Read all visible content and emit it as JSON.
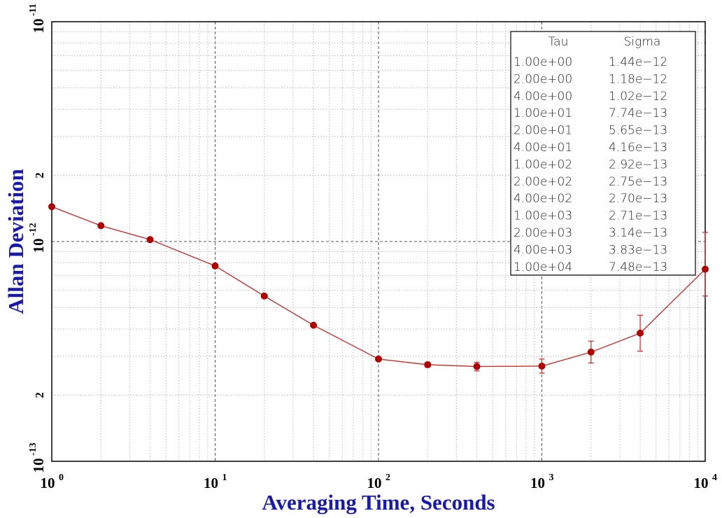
{
  "chart_data": {
    "type": "line",
    "xlabel": "Averaging Time, Seconds",
    "ylabel": "Allan Deviation",
    "xscale": "log",
    "yscale": "log",
    "xlim": [
      1,
      10000
    ],
    "ylim": [
      1e-13,
      1e-11
    ],
    "grid": true,
    "x_ticks": [
      {
        "mantissa": "10",
        "exp": "0"
      },
      {
        "mantissa": "10",
        "exp": "1"
      },
      {
        "mantissa": "10",
        "exp": "2"
      },
      {
        "mantissa": "10",
        "exp": "3"
      },
      {
        "mantissa": "10",
        "exp": "4"
      }
    ],
    "y_ticks": [
      {
        "mantissa": "10",
        "exp": "-13"
      },
      {
        "mantissa": "10",
        "exp": "-12"
      },
      {
        "mantissa": "10",
        "exp": "-11"
      }
    ],
    "y_minor_labels": [
      "2",
      "2"
    ],
    "series": [
      {
        "color": "#c83232",
        "marker_color": "#b00000",
        "x": [
          1,
          2,
          4,
          10,
          20,
          40,
          100,
          200,
          400,
          1000,
          2000,
          4000,
          10000
        ],
        "y": [
          1.44e-12,
          1.18e-12,
          1.02e-12,
          7.74e-13,
          5.65e-13,
          4.16e-13,
          2.92e-13,
          2.75e-13,
          2.7e-13,
          2.71e-13,
          3.14e-13,
          3.83e-13,
          7.48e-13
        ],
        "err_low": [
          null,
          null,
          null,
          null,
          null,
          null,
          2.87e-13,
          2.68e-13,
          2.58e-13,
          2.52e-13,
          2.8e-13,
          3.17e-13,
          5.65e-13
        ],
        "err_high": [
          null,
          null,
          null,
          null,
          null,
          null,
          2.97e-13,
          2.82e-13,
          2.82e-13,
          2.92e-13,
          3.52e-13,
          4.62e-13,
          1.1e-12
        ]
      }
    ],
    "table": {
      "headers": [
        "Tau",
        "Sigma"
      ],
      "rows": [
        [
          "1.00e+00",
          "1.44e−12"
        ],
        [
          "2.00e+00",
          "1.18e−12"
        ],
        [
          "4.00e+00",
          "1.02e−12"
        ],
        [
          "1.00e+01",
          "7.74e−13"
        ],
        [
          "2.00e+01",
          "5.65e−13"
        ],
        [
          "4.00e+01",
          "4.16e−13"
        ],
        [
          "1.00e+02",
          "2.92e−13"
        ],
        [
          "2.00e+02",
          "2.75e−13"
        ],
        [
          "4.00e+02",
          "2.70e−13"
        ],
        [
          "1.00e+03",
          "2.71e−13"
        ],
        [
          "2.00e+03",
          "3.14e−13"
        ],
        [
          "4.00e+03",
          "3.83e−13"
        ],
        [
          "1.00e+04",
          "7.48e−13"
        ]
      ]
    }
  }
}
